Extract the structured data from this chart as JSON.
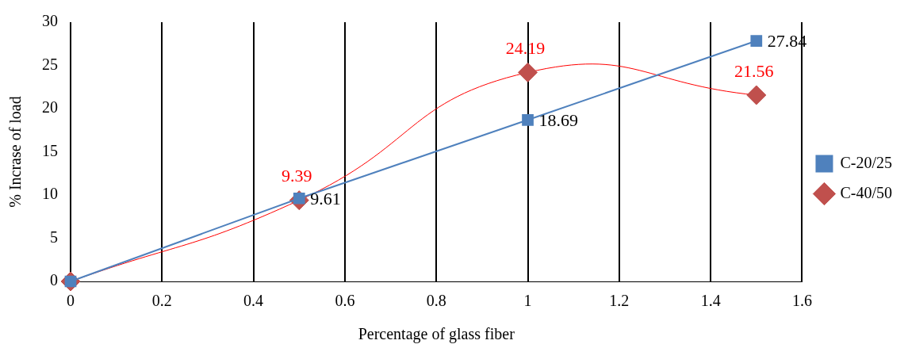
{
  "chart_data": {
    "type": "line",
    "xlabel": "Percentage of glass fiber",
    "ylabel": "% Incrase of load",
    "xlim": [
      0,
      1.6
    ],
    "xticks": [
      0,
      0.2,
      0.4,
      0.6,
      0.8,
      1,
      1.2,
      1.4,
      1.6
    ],
    "ylim": [
      0,
      30
    ],
    "yticks": [
      0,
      5,
      10,
      15,
      20,
      25,
      30
    ],
    "x": [
      0,
      0.5,
      1,
      1.5
    ],
    "series": [
      {
        "name": "C-20/25",
        "color": "#4f81bd",
        "marker": "square",
        "values": [
          0,
          9.61,
          18.69,
          27.84
        ],
        "value_labels": [
          null,
          "9.61",
          "18.69",
          "27.84"
        ]
      },
      {
        "name": "C-40/50",
        "color": "#c0504d",
        "marker": "diamond",
        "values": [
          0,
          9.39,
          24.19,
          21.56
        ],
        "value_labels": [
          null,
          "9.39",
          "24.19",
          "21.56"
        ]
      }
    ],
    "grid": "x",
    "legend": "right"
  }
}
